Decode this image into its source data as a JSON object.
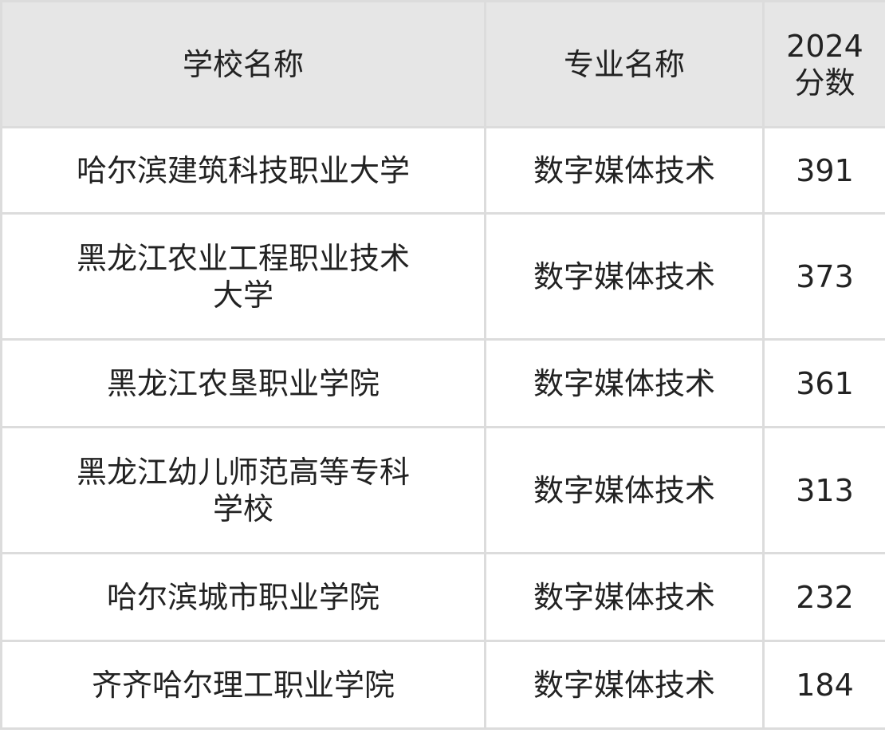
{
  "headers": [
    "学校名称",
    "专业名称",
    "2024\n分数"
  ],
  "header_score_line1": "2024",
  "header_score_line2": "分数",
  "rows": [
    {
      "school": "哈尔滨建筑科技职业大学",
      "major": "数字媒体技术",
      "score": "391"
    },
    {
      "school": "黑龙江农业工程职业技术大学",
      "major": "数字媒体技术",
      "score": "373"
    },
    {
      "school": "黑龙江农垦职业学院",
      "major": "数字媒体技术",
      "score": "361"
    },
    {
      "school": "黑龙江幼儿师范高等专科学校",
      "major": "数字媒体技术",
      "score": "313"
    },
    {
      "school": "哈尔滨城市职业学院",
      "major": "数字媒体技术",
      "score": "232"
    },
    {
      "school": "齐齐哈尔理工职业学院",
      "major": "数字媒体技术",
      "score": "184"
    }
  ]
}
